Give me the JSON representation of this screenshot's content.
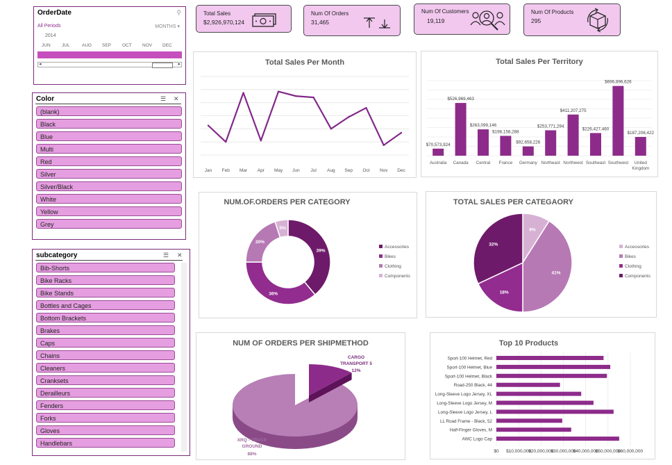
{
  "colors": {
    "c1": "#6e1a6a",
    "c2": "#922c8f",
    "c3": "#b679b4",
    "c4": "#d7b1d4",
    "line": "#82288a",
    "bar": "#8d2b8a",
    "accent": "#e59ee0"
  },
  "kpis": [
    {
      "label": "Total Sales",
      "value": "$2,926,970,124",
      "icon": "money-icon"
    },
    {
      "label": "Num Of Orders",
      "value": "31,465",
      "icon": "arrows-icon"
    },
    {
      "label": "Num Of Customers",
      "value": "19,119",
      "icon": "customers-icon"
    },
    {
      "label": "Num Of Products",
      "value": "295",
      "icon": "box-icon"
    }
  ],
  "date_slicer": {
    "title": "OrderDate",
    "periods": "All Periods",
    "unit": "MONTHS",
    "year": "2014",
    "months": [
      "JUN",
      "JUL",
      "AUG",
      "SEP",
      "OCT",
      "NOV",
      "DEC"
    ]
  },
  "color_slicer": {
    "title": "Color",
    "items": [
      "(blank)",
      "Black",
      "Blue",
      "Multi",
      "Red",
      "Silver",
      "Silver/Black",
      "White",
      "Yellow",
      "Grey"
    ]
  },
  "subcategory_slicer": {
    "title": "subcategory",
    "items": [
      "Bib-Shorts",
      "Bike Racks",
      "Bike Stands",
      "Bottles and Cages",
      "Bottom Brackets",
      "Brakes",
      "Caps",
      "Chains",
      "Cleaners",
      "Cranksets",
      "Derailleurs",
      "Fenders",
      "Forks",
      "Gloves",
      "Handlebars"
    ]
  },
  "chart_data": [
    {
      "type": "line",
      "title": "Total Sales Per Month",
      "categories": [
        "Jan",
        "Feb",
        "Mar",
        "Apr",
        "May",
        "Jun",
        "Jul",
        "Aug",
        "Sep",
        "Oct",
        "Nov",
        "Dec"
      ],
      "values": [
        0.45,
        0.2,
        0.95,
        0.22,
        0.97,
        0.9,
        0.88,
        0.4,
        0.58,
        0.72,
        0.15,
        0.34
      ],
      "ylim": [
        0,
        1.2
      ],
      "grid": true
    },
    {
      "type": "bar",
      "title": "Total Sales Per Territory",
      "categories": [
        "Australia",
        "Canada",
        "Central",
        "France",
        "Germany",
        "Northeast",
        "Northwest",
        "Southeast",
        "Southwest",
        "United Kingdom"
      ],
      "values": [
        70573924,
        526969463,
        263099146,
        198158288,
        92658226,
        253771294,
        411207275,
        226427460,
        696896626,
        187208422
      ],
      "labels": [
        "$70,573,924",
        "$526,969,463",
        "$263,099,146",
        "$198,158,288",
        "$92,658,226",
        "$253,771,294",
        "$411,207,275",
        "$226,427,460",
        "$696,896,626",
        "$187,208,422"
      ]
    },
    {
      "type": "pie",
      "subtype": "donut",
      "title": "NUM.OF.ORDERS PER CATEGORY",
      "categories": [
        "Accessories",
        "Bikes",
        "Clothing",
        "Components"
      ],
      "values": [
        39,
        36,
        20,
        5
      ],
      "labels": [
        "39%",
        "36%",
        "20%",
        "5%"
      ],
      "legend": "right"
    },
    {
      "type": "pie",
      "title": "TOTAL SALES PER CATEGAORY",
      "categories": [
        "Accessories",
        "Bikes",
        "Clothing",
        "Components"
      ],
      "values": [
        9,
        41,
        18,
        32
      ],
      "labels": [
        "9%",
        "41%",
        "18%",
        "32%"
      ],
      "legend": "right"
    },
    {
      "type": "pie",
      "subtype": "3d",
      "title": "NUM OF ORDERS PER SHIPMETHOD",
      "categories": [
        "CARGO TRANSPORT 5",
        "XRQ - TRUCK GROUND"
      ],
      "values": [
        12,
        88
      ],
      "labels": [
        "12%",
        "88%"
      ]
    },
    {
      "type": "bar",
      "orientation": "horizontal",
      "title": "Top 10 Products",
      "categories": [
        "Sport-100 Helmet, Red",
        "Sport-100 Helmet, Blue",
        "Sport-100 Helmet, Black",
        "Road-250 Black, 44",
        "Long-Sleeve Logo Jersey, XL",
        "Long-Sleeve Logo Jersey, M",
        "Long-Sleeve Logo Jersey, L",
        "LL Road Frame - Black, 52",
        "Half-Finger Gloves, M",
        "AWC Logo Cap"
      ],
      "values": [
        48000000,
        51000000,
        49500000,
        28500000,
        38000000,
        43500000,
        52500000,
        29500000,
        33500000,
        55000000
      ],
      "ticks": [
        "$0",
        "$10,000,000",
        "$20,000,000",
        "$30,000,000",
        "$40,000,000",
        "$50,000,000",
        "$60,000,000"
      ],
      "xlim": [
        0,
        60000000
      ]
    }
  ]
}
